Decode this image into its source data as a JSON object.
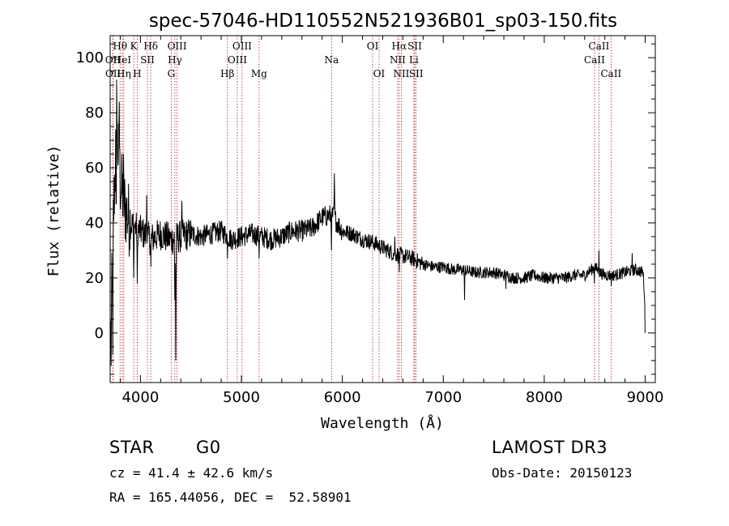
{
  "chart_data": {
    "type": "line",
    "title": "spec-57046-HD110552N521936B01_sp03-150.fits",
    "xlabel": "Wavelength (Å)",
    "ylabel": "Flux (relative)",
    "xlim": [
      3700,
      9100
    ],
    "ylim": [
      -18,
      108
    ],
    "xticks": [
      4000,
      5000,
      6000,
      7000,
      8000,
      9000
    ],
    "yticks": [
      0,
      20,
      40,
      60,
      80,
      100
    ],
    "x_tick_labels": [
      "4000",
      "5000",
      "6000",
      "7000",
      "8000",
      "9000"
    ],
    "y_tick_labels": [
      "0",
      "20",
      "40",
      "60",
      "80",
      "100"
    ],
    "spectrum_anchors": [
      [
        3700,
        2
      ],
      [
        3720,
        30
      ],
      [
        3740,
        50
      ],
      [
        3760,
        72
      ],
      [
        3780,
        66
      ],
      [
        3800,
        55
      ],
      [
        3850,
        45
      ],
      [
        3900,
        40
      ],
      [
        4000,
        37
      ],
      [
        4100,
        34
      ],
      [
        4200,
        36
      ],
      [
        4300,
        34
      ],
      [
        4400,
        35
      ],
      [
        4500,
        36
      ],
      [
        4600,
        35
      ],
      [
        4700,
        36
      ],
      [
        4800,
        37
      ],
      [
        4900,
        34
      ],
      [
        5000,
        35
      ],
      [
        5100,
        36
      ],
      [
        5200,
        35
      ],
      [
        5300,
        34
      ],
      [
        5400,
        35
      ],
      [
        5500,
        37
      ],
      [
        5600,
        37
      ],
      [
        5700,
        38
      ],
      [
        5800,
        42
      ],
      [
        5900,
        43
      ],
      [
        6000,
        37
      ],
      [
        6100,
        36
      ],
      [
        6200,
        34
      ],
      [
        6300,
        33
      ],
      [
        6400,
        31
      ],
      [
        6500,
        29
      ],
      [
        6600,
        28
      ],
      [
        6700,
        27
      ],
      [
        6800,
        25
      ],
      [
        6900,
        24
      ],
      [
        7000,
        24
      ],
      [
        7100,
        23
      ],
      [
        7200,
        23
      ],
      [
        7300,
        22
      ],
      [
        7400,
        22
      ],
      [
        7500,
        22
      ],
      [
        7600,
        21
      ],
      [
        7700,
        20
      ],
      [
        7800,
        20
      ],
      [
        7900,
        21
      ],
      [
        8000,
        20
      ],
      [
        8100,
        20
      ],
      [
        8200,
        20
      ],
      [
        8300,
        21
      ],
      [
        8400,
        21
      ],
      [
        8500,
        24
      ],
      [
        8550,
        22
      ],
      [
        8600,
        21
      ],
      [
        8700,
        21
      ],
      [
        8800,
        22
      ],
      [
        8900,
        23
      ],
      [
        8980,
        22
      ],
      [
        9000,
        10
      ]
    ],
    "spectrum_dips": [
      [
        3710,
        -12
      ],
      [
        3725,
        -8
      ],
      [
        3760,
        8
      ],
      [
        3935,
        20
      ],
      [
        3970,
        18
      ],
      [
        4102,
        24
      ],
      [
        4340,
        12
      ],
      [
        4350,
        -10
      ],
      [
        4861,
        27
      ],
      [
        5175,
        27
      ],
      [
        5892,
        30
      ],
      [
        6563,
        22
      ],
      [
        7210,
        12
      ],
      [
        7620,
        16
      ],
      [
        8498,
        18
      ],
      [
        8542,
        15
      ],
      [
        8662,
        17
      ],
      [
        9000,
        0
      ]
    ],
    "spectrum_peaks": [
      [
        3765,
        92
      ],
      [
        3790,
        84
      ],
      [
        3830,
        65
      ],
      [
        4060,
        50
      ],
      [
        4410,
        48
      ],
      [
        5920,
        58
      ],
      [
        6520,
        35
      ],
      [
        8540,
        30
      ],
      [
        8870,
        29
      ]
    ],
    "lines": [
      {
        "label": "Hθ",
        "x": 3798,
        "row": 1
      },
      {
        "label": "OII",
        "x": 3727,
        "row": 2
      },
      {
        "label": "OII",
        "x": 3729,
        "row": 3
      },
      {
        "label": "HeI",
        "x": 3820,
        "row": 2
      },
      {
        "label": "Hη",
        "x": 3835,
        "row": 3
      },
      {
        "label": "K",
        "x": 3934,
        "row": 1
      },
      {
        "label": "H",
        "x": 3968,
        "row": 3
      },
      {
        "label": "SII",
        "x": 4069,
        "row": 2
      },
      {
        "label": "Hδ",
        "x": 4102,
        "row": 1
      },
      {
        "label": "OIII",
        "x": 4363,
        "row": 1
      },
      {
        "label": "Hγ",
        "x": 4341,
        "row": 2
      },
      {
        "label": "G",
        "x": 4305,
        "row": 3
      },
      {
        "label": "Hβ",
        "x": 4861,
        "row": 3
      },
      {
        "label": "OIII",
        "x": 5007,
        "row": 1
      },
      {
        "label": "OIII",
        "x": 4959,
        "row": 2
      },
      {
        "label": "Mg",
        "x": 5175,
        "row": 3
      },
      {
        "label": "Na",
        "x": 5893,
        "row": 2
      },
      {
        "label": "OI",
        "x": 6300,
        "row": 1
      },
      {
        "label": "OI",
        "x": 6364,
        "row": 3
      },
      {
        "label": "Hα",
        "x": 6563,
        "row": 1
      },
      {
        "label": "NII",
        "x": 6548,
        "row": 2
      },
      {
        "label": "NII",
        "x": 6584,
        "row": 3
      },
      {
        "label": "SII",
        "x": 6717,
        "row": 1
      },
      {
        "label": "Li",
        "x": 6708,
        "row": 2
      },
      {
        "label": "SII",
        "x": 6731,
        "row": 3
      },
      {
        "label": "CaII",
        "x": 8542,
        "row": 1
      },
      {
        "label": "CaII",
        "x": 8498,
        "row": 2
      },
      {
        "label": "CaII",
        "x": 8662,
        "row": 3
      }
    ]
  },
  "info": {
    "object_type": "STAR",
    "subclass": "G0",
    "survey": "LAMOST DR3",
    "cz": "cz = 41.4 ± 42.6 km/s",
    "obs_date": "Obs-Date: 20150123",
    "coords": "RA = 165.44056, DEC =  52.58901"
  },
  "colors": {
    "line_marker": "#b02020",
    "spectrum": "#000000"
  }
}
